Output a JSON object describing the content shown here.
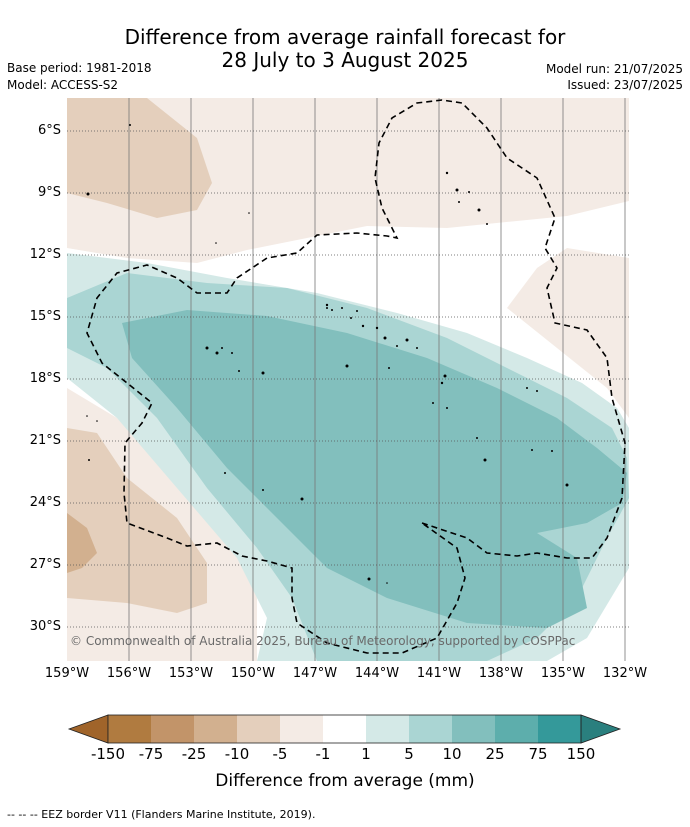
{
  "title": {
    "line1": "Difference from average rainfall forecast for",
    "line2": "28 July to 3 August 2025"
  },
  "meta": {
    "base_period": "Base period: 1981-2018",
    "model": "Model: ACCESS-S2",
    "model_run": "Model run: 21/07/2025",
    "issued": "Issued: 23/07/2025"
  },
  "map": {
    "lat_labels": [
      "6°S",
      "9°S",
      "12°S",
      "15°S",
      "18°S",
      "21°S",
      "24°S",
      "27°S",
      "30°S"
    ],
    "lon_labels": [
      "159°W",
      "156°W",
      "153°W",
      "150°W",
      "147°W",
      "144°W",
      "141°W",
      "138°W",
      "135°W",
      "132°W"
    ],
    "copyright": "© Commonwealth of Australia 2025, Bureau of Meteorology, supported by COSPPac"
  },
  "colorbar": {
    "title": "Difference from average (mm)",
    "tick_labels": [
      "-150",
      "-75",
      "-25",
      "-10",
      "-5",
      "-1",
      "1",
      "5",
      "10",
      "25",
      "75",
      "150"
    ],
    "colors": [
      "#b07b40",
      "#c29469",
      "#d2b08f",
      "#e4cfbc",
      "#f4ebe5",
      "#ffffff",
      "#d4e9e7",
      "#aad5d3",
      "#82bfbd",
      "#5daeac",
      "#34999a"
    ],
    "under_color": "#a0642a",
    "over_color": "#2a7f7e"
  },
  "legend": {
    "eez": "--  --  -- EEZ border V11 (Flanders Marine Institute, 2019)."
  }
}
